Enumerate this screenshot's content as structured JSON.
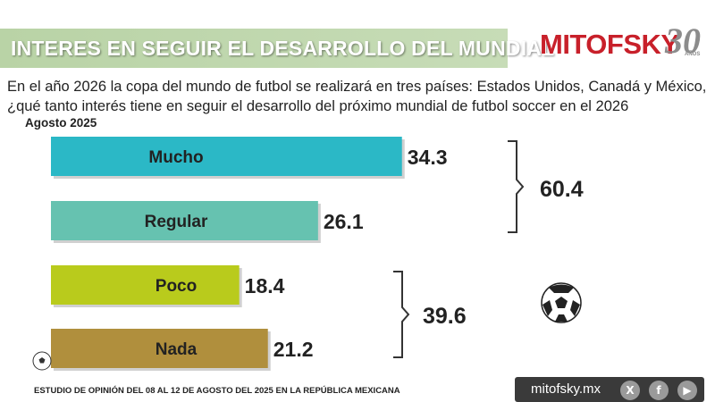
{
  "header": {
    "title": "INTERES EN SEGUIR EL DESARROLLO DEL MUNDIAL",
    "logo_text": "MITOFSKY",
    "logo_anniversary": "30",
    "logo_anniversary_sub": "AÑOS"
  },
  "question": "En el año 2026 la copa del mundo de futbol se realizará en tres países:  Estados Unidos, Canadá y México, ¿qué tanto interés tiene en seguir el desarrollo del próximo mundial de futbol soccer en el 2026",
  "footer": {
    "note": "ESTUDIO DE OPINIÓN DEL 08 AL 12 DE AGOSTO DEL 2025 EN LA REPÚBLICA MEXICANA",
    "url": "mitofsky.mx",
    "social_icons": [
      "x-icon",
      "facebook-icon",
      "youtube-icon"
    ]
  },
  "chart_data": {
    "type": "bar",
    "orientation": "horizontal",
    "subtitle": "Agosto 2025",
    "categories": [
      "Mucho",
      "Regular",
      "Poco",
      "Nada"
    ],
    "values": [
      34.3,
      26.1,
      18.4,
      21.2
    ],
    "value_labels": [
      "34.3",
      "26.1",
      "18.4",
      "21.2"
    ],
    "colors": [
      "#2bb8c6",
      "#66c2b0",
      "#b9cb1c",
      "#b08f3d"
    ],
    "groups": [
      {
        "members": [
          "Mucho",
          "Regular"
        ],
        "total": 60.4,
        "label": "60.4"
      },
      {
        "members": [
          "Poco",
          "Nada"
        ],
        "total": 39.6,
        "label": "39.6"
      }
    ],
    "grid": false,
    "legend": "none"
  }
}
